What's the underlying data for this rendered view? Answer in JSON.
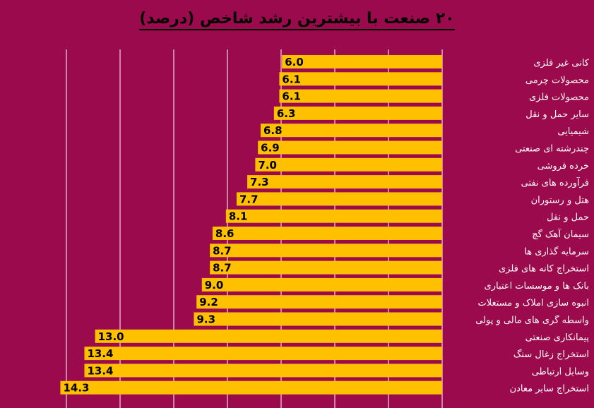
{
  "colors": {
    "background": "#9b0a4c",
    "bar": "#ffc000",
    "bar_label_text": "#000000",
    "category_text": "#ffffff",
    "grid": "#ffffff"
  },
  "chart_data": {
    "type": "bar",
    "orientation": "horizontal",
    "title": "۲۰ صنعت با بیشترین رشد شاخص (درصد)",
    "xlabel": "",
    "ylabel": "",
    "grid": true,
    "legend": "none",
    "xlim": [
      0,
      15
    ],
    "categories": [
      "کانی غیر فلزی",
      "محصولات چرمی",
      "محصولات فلزی",
      "سایر حمل و نقل",
      "شیمیایی",
      "چندرشته ای صنعتی",
      "خرده فروشی",
      "فرآورده های نفتی",
      "هتل و رستوران",
      "حمل و نقل",
      "سیمان آهک گچ",
      "سرمایه گذاری ها",
      "استخراج کانه های فلزی",
      "بانک ها و موسسات اعتباری",
      "انبوه سازی املاک و مستغلات",
      "واسطه گری های مالی و پولی",
      "پیمانکاری صنعتی",
      "استخراج زغال سنگ",
      "وسایل ارتباطی",
      "استخراج سایر معادن"
    ],
    "values": [
      6.0,
      6.1,
      6.1,
      6.3,
      6.8,
      6.9,
      7.0,
      7.3,
      7.7,
      8.1,
      8.6,
      8.7,
      8.7,
      9.0,
      9.2,
      9.3,
      13.0,
      13.4,
      13.4,
      14.3
    ],
    "value_labels": [
      "6.0",
      "6.1",
      "6.1",
      "6.3",
      "6.8",
      "6.9",
      "7.0",
      "7.3",
      "7.7",
      "8.1",
      "8.6",
      "8.7",
      "8.7",
      "9.0",
      "9.2",
      "9.3",
      "13.0",
      "13.4",
      "13.4",
      "14.3"
    ]
  }
}
